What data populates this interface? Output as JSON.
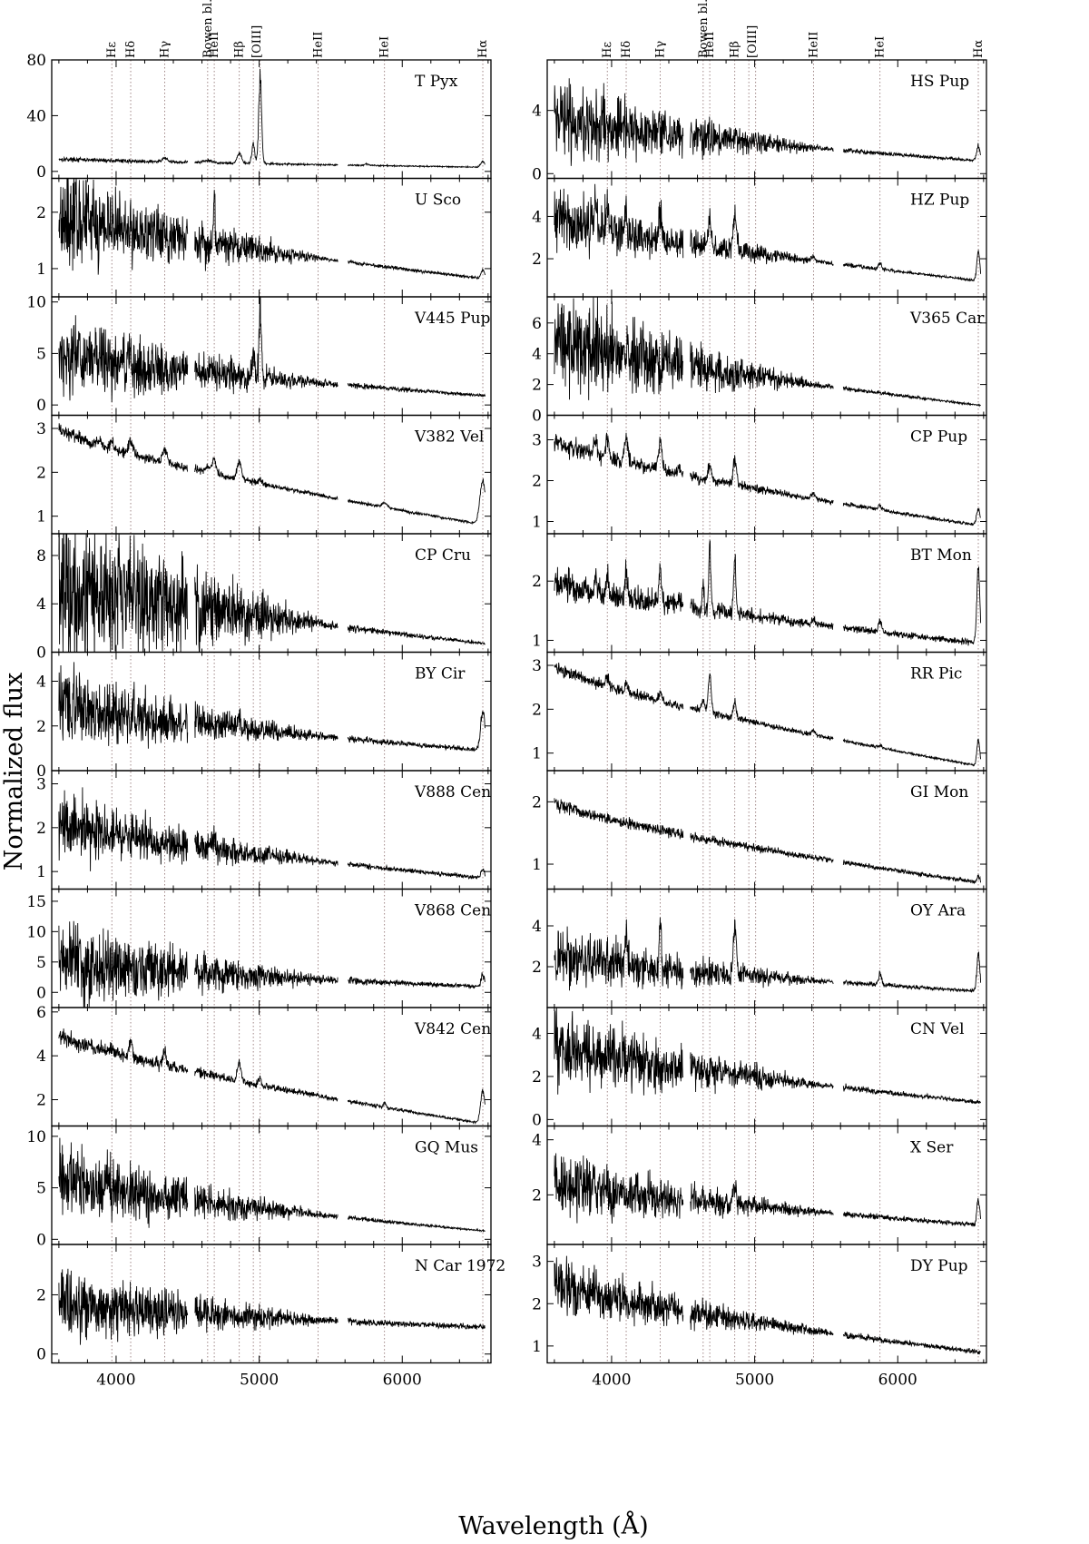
{
  "figure": {
    "ylabel": "Normalized flux",
    "xlabel": "Wavelength (Å)"
  },
  "chart_data": {
    "type": "line",
    "xlim": [
      3550,
      6620
    ],
    "x_ticks": [
      4000,
      5000,
      6000
    ],
    "x_tick_labels": [
      "4000",
      "5000",
      "6000"
    ],
    "xlabel": "Wavelength (Å)",
    "ylabel": "Normalized flux",
    "wavelength_segments": [
      [
        3600,
        4500
      ],
      [
        4550,
        5550
      ],
      [
        5620,
        6580
      ]
    ],
    "reference_lines": [
      {
        "label": "Hε",
        "x": 3970
      },
      {
        "label": "Hδ",
        "x": 4102
      },
      {
        "label": "Hγ",
        "x": 4340
      },
      {
        "label": "Bowen bl.",
        "x": 4640
      },
      {
        "label": "HeII",
        "x": 4686
      },
      {
        "label": "Hβ",
        "x": 4861
      },
      {
        "label": "[OIII]",
        "x": 4959
      },
      {
        "label": "[OIII]",
        "x": 5007
      },
      {
        "label": "HeII",
        "x": 5411
      },
      {
        "label": "HeI",
        "x": 5876
      },
      {
        "label": "Hα",
        "x": 6563
      }
    ],
    "top_labels": [
      {
        "text": "Hε",
        "x": 3970
      },
      {
        "text": "Hδ",
        "x": 4102
      },
      {
        "text": "Hγ",
        "x": 4340
      },
      {
        "text": "Bowen bl.",
        "x": 4640
      },
      {
        "text": "HeII",
        "x": 4686
      },
      {
        "text": "Hβ",
        "x": 4861
      },
      {
        "text": "[OIII]",
        "x": 4985
      },
      {
        "text": "HeII",
        "x": 5411
      },
      {
        "text": "HeI",
        "x": 5876
      },
      {
        "text": "Hα",
        "x": 6563
      }
    ],
    "panels": [
      {
        "name": "T Pyx",
        "column": 0,
        "row": 0,
        "ylim": [
          -5,
          80
        ],
        "yticks": [
          0,
          40,
          80
        ],
        "continuum": [
          9,
          3
        ],
        "noise": 0.12,
        "noise_frac": 0.06,
        "lines": [
          [
            4340,
            3,
            15
          ],
          [
            4640,
            1.5,
            30
          ],
          [
            4861,
            7,
            15
          ],
          [
            4959,
            14,
            10
          ],
          [
            5007,
            60,
            10
          ],
          [
            5755,
            1,
            15
          ],
          [
            6563,
            4,
            15
          ]
        ]
      },
      {
        "name": "U Sco",
        "column": 0,
        "row": 1,
        "ylim": [
          0.5,
          2.6
        ],
        "yticks": [
          1,
          2
        ],
        "continuum": [
          2.0,
          0.82
        ],
        "noise": 0.03,
        "noise_frac": 0.38,
        "lines": [
          [
            4686,
            0.9,
            5
          ],
          [
            6563,
            0.15,
            12
          ]
        ]
      },
      {
        "name": "V445 Pup",
        "column": 0,
        "row": 2,
        "ylim": [
          -1,
          10.5
        ],
        "yticks": [
          0,
          5,
          10
        ],
        "continuum": [
          5,
          0.9
        ],
        "noise": 0.15,
        "noise_frac": 0.6,
        "lines": [
          [
            4959,
            2.5,
            8
          ],
          [
            5007,
            7,
            8
          ]
        ]
      },
      {
        "name": "V382 Vel",
        "column": 0,
        "row": 3,
        "ylim": [
          0.6,
          3.3
        ],
        "yticks": [
          1,
          2,
          3
        ],
        "continuum": [
          3.0,
          0.8
        ],
        "noise": 0.03,
        "noise_frac": 0.02,
        "lines": [
          [
            3889,
            0.15,
            10
          ],
          [
            3970,
            0.2,
            10
          ],
          [
            4102,
            0.3,
            15
          ],
          [
            4340,
            0.3,
            15
          ],
          [
            4640,
            0.1,
            20
          ],
          [
            4686,
            0.3,
            15
          ],
          [
            4861,
            0.4,
            15
          ],
          [
            5007,
            0.1,
            12
          ],
          [
            5876,
            0.1,
            20
          ],
          [
            6563,
            1.0,
            20
          ]
        ]
      },
      {
        "name": "CP Cru",
        "column": 0,
        "row": 4,
        "ylim": [
          0,
          9.8
        ],
        "yticks": [
          0,
          4,
          8
        ],
        "continuum": [
          6,
          0.7
        ],
        "noise": 0.15,
        "noise_frac": 0.95,
        "lines": []
      },
      {
        "name": "BY Cir",
        "column": 0,
        "row": 5,
        "ylim": [
          0,
          5.3
        ],
        "yticks": [
          0,
          2,
          4
        ],
        "continuum": [
          3.0,
          0.9
        ],
        "noise": 0.1,
        "noise_frac": 0.45,
        "lines": [
          [
            4861,
            0.5,
            8
          ],
          [
            6563,
            1.8,
            15
          ]
        ]
      },
      {
        "name": "V888 Cen",
        "column": 0,
        "row": 6,
        "ylim": [
          0.6,
          3.3
        ],
        "yticks": [
          1,
          2,
          3
        ],
        "continuum": [
          2.1,
          0.85
        ],
        "noise": 0.05,
        "noise_frac": 0.3,
        "lines": [
          [
            4686,
            0.2,
            10
          ],
          [
            6563,
            0.2,
            12
          ]
        ]
      },
      {
        "name": "V868 Cen",
        "column": 0,
        "row": 7,
        "ylim": [
          -2.5,
          17
        ],
        "yticks": [
          0,
          5,
          10,
          15
        ],
        "continuum": [
          5,
          0.9
        ],
        "noise": 0.3,
        "noise_frac": 1.0,
        "lines": [
          [
            6563,
            2,
            12
          ]
        ]
      },
      {
        "name": "V842 Cen",
        "column": 0,
        "row": 8,
        "ylim": [
          0.8,
          6.2
        ],
        "yticks": [
          2,
          4,
          6
        ],
        "continuum": [
          5,
          0.9
        ],
        "noise": 0.05,
        "noise_frac": 0.03,
        "lines": [
          [
            3970,
            0.3,
            10
          ],
          [
            4102,
            0.8,
            12
          ],
          [
            4340,
            0.6,
            12
          ],
          [
            4861,
            0.9,
            12
          ],
          [
            5007,
            0.3,
            10
          ],
          [
            5876,
            0.2,
            10
          ],
          [
            6563,
            1.5,
            15
          ]
        ]
      },
      {
        "name": "GQ Mus",
        "column": 0,
        "row": 9,
        "ylim": [
          -0.5,
          11
        ],
        "yticks": [
          0,
          5,
          10
        ],
        "continuum": [
          6,
          0.8
        ],
        "noise": 0.1,
        "noise_frac": 0.5,
        "lines": []
      },
      {
        "name": "N Car 1972",
        "column": 0,
        "row": 10,
        "ylim": [
          -0.3,
          3.7
        ],
        "yticks": [
          0,
          2
        ],
        "continuum": [
          1.7,
          0.9
        ],
        "noise": 0.1,
        "noise_frac": 0.6,
        "lines": []
      },
      {
        "name": "HS Pup",
        "column": 1,
        "row": 0,
        "ylim": [
          -0.3,
          7.2
        ],
        "yticks": [
          0,
          4
        ],
        "continuum": [
          3.5,
          0.8
        ],
        "noise": 0.1,
        "noise_frac": 0.6,
        "lines": [
          [
            6563,
            0.9,
            12
          ]
        ]
      },
      {
        "name": "HZ Pup",
        "column": 1,
        "row": 1,
        "ylim": [
          0.2,
          5.8
        ],
        "yticks": [
          2,
          4
        ],
        "continuum": [
          4,
          0.95
        ],
        "noise": 0.05,
        "noise_frac": 0.3,
        "lines": [
          [
            3889,
            1.5,
            8
          ],
          [
            3970,
            1.5,
            8
          ],
          [
            4102,
            1.5,
            8
          ],
          [
            4340,
            1.5,
            8
          ],
          [
            4686,
            1.4,
            10
          ],
          [
            4861,
            1.6,
            12
          ],
          [
            5411,
            0.2,
            12
          ],
          [
            5876,
            0.3,
            10
          ],
          [
            6563,
            1.4,
            10
          ]
        ]
      },
      {
        "name": "V365 Car",
        "column": 1,
        "row": 2,
        "ylim": [
          0,
          7.7
        ],
        "yticks": [
          0,
          2,
          4,
          6
        ],
        "continuum": [
          5,
          0.65
        ],
        "noise": 0.08,
        "noise_frac": 0.55,
        "lines": []
      },
      {
        "name": "CP Pup",
        "column": 1,
        "row": 3,
        "ylim": [
          0.7,
          3.6
        ],
        "yticks": [
          1,
          2,
          3
        ],
        "continuum": [
          3.0,
          0.9
        ],
        "noise": 0.04,
        "noise_frac": 0.04,
        "lines": [
          [
            3889,
            0.4,
            10
          ],
          [
            3970,
            0.5,
            10
          ],
          [
            4102,
            0.6,
            12
          ],
          [
            4340,
            0.7,
            12
          ],
          [
            4471,
            0.15,
            10
          ],
          [
            4686,
            0.4,
            12
          ],
          [
            4861,
            0.6,
            12
          ],
          [
            5411,
            0.15,
            12
          ],
          [
            5876,
            0.1,
            12
          ],
          [
            6563,
            0.4,
            12
          ]
        ]
      },
      {
        "name": "BT Mon",
        "column": 1,
        "row": 4,
        "ylim": [
          0.8,
          2.8
        ],
        "yticks": [
          1,
          2
        ],
        "continuum": [
          2.0,
          0.95
        ],
        "noise": 0.05,
        "noise_frac": 0.08,
        "lines": [
          [
            3889,
            0.3,
            6
          ],
          [
            3970,
            0.4,
            6
          ],
          [
            4102,
            0.5,
            8
          ],
          [
            4340,
            0.6,
            8
          ],
          [
            4471,
            0.1,
            10
          ],
          [
            4640,
            0.4,
            6
          ],
          [
            4686,
            1.1,
            7
          ],
          [
            4861,
            1.0,
            8
          ],
          [
            5411,
            0.08,
            10
          ],
          [
            5876,
            0.2,
            10
          ],
          [
            6563,
            1.3,
            10
          ]
        ]
      },
      {
        "name": "RR Pic",
        "column": 1,
        "row": 5,
        "ylim": [
          0.6,
          3.3
        ],
        "yticks": [
          1,
          2,
          3
        ],
        "continuum": [
          3.0,
          0.7
        ],
        "noise": 0.03,
        "noise_frac": 0.02,
        "lines": [
          [
            3970,
            0.2,
            10
          ],
          [
            4102,
            0.2,
            10
          ],
          [
            4340,
            0.2,
            10
          ],
          [
            4640,
            0.2,
            12
          ],
          [
            4686,
            0.9,
            10
          ],
          [
            4861,
            0.4,
            10
          ],
          [
            5411,
            0.1,
            12
          ],
          [
            5876,
            0.05,
            12
          ],
          [
            6563,
            0.6,
            10
          ]
        ]
      },
      {
        "name": "GI Mon",
        "column": 1,
        "row": 6,
        "ylim": [
          0.6,
          2.5
        ],
        "yticks": [
          1,
          2
        ],
        "continuum": [
          2.0,
          0.7
        ],
        "noise": 0.04,
        "noise_frac": 0.02,
        "lines": [
          [
            6563,
            0.1,
            10
          ]
        ]
      },
      {
        "name": "OY Ara",
        "column": 1,
        "row": 7,
        "ylim": [
          0,
          5.8
        ],
        "yticks": [
          2,
          4
        ],
        "continuum": [
          2.5,
          0.8
        ],
        "noise": 0.1,
        "noise_frac": 0.45,
        "lines": [
          [
            4102,
            1.5,
            8
          ],
          [
            4340,
            2,
            8
          ],
          [
            4861,
            2.5,
            10
          ],
          [
            5876,
            0.6,
            10
          ],
          [
            6563,
            1.8,
            10
          ]
        ]
      },
      {
        "name": "CN Vel",
        "column": 1,
        "row": 8,
        "ylim": [
          -0.3,
          5.2
        ],
        "yticks": [
          0,
          2,
          4
        ],
        "continuum": [
          3.5,
          0.8
        ],
        "noise": 0.1,
        "noise_frac": 0.4,
        "lines": []
      },
      {
        "name": "X Ser",
        "column": 1,
        "row": 9,
        "ylim": [
          0.2,
          4.5
        ],
        "yticks": [
          2,
          4
        ],
        "continuum": [
          2.5,
          0.9
        ],
        "noise": 0.08,
        "noise_frac": 0.35,
        "lines": [
          [
            4861,
            0.8,
            10
          ],
          [
            6563,
            0.9,
            10
          ]
        ]
      },
      {
        "name": "DY Pup",
        "column": 1,
        "row": 10,
        "ylim": [
          0.6,
          3.4
        ],
        "yticks": [
          1,
          2,
          3
        ],
        "continuum": [
          2.5,
          0.85
        ],
        "noise": 0.06,
        "noise_frac": 0.2,
        "lines": []
      }
    ]
  }
}
